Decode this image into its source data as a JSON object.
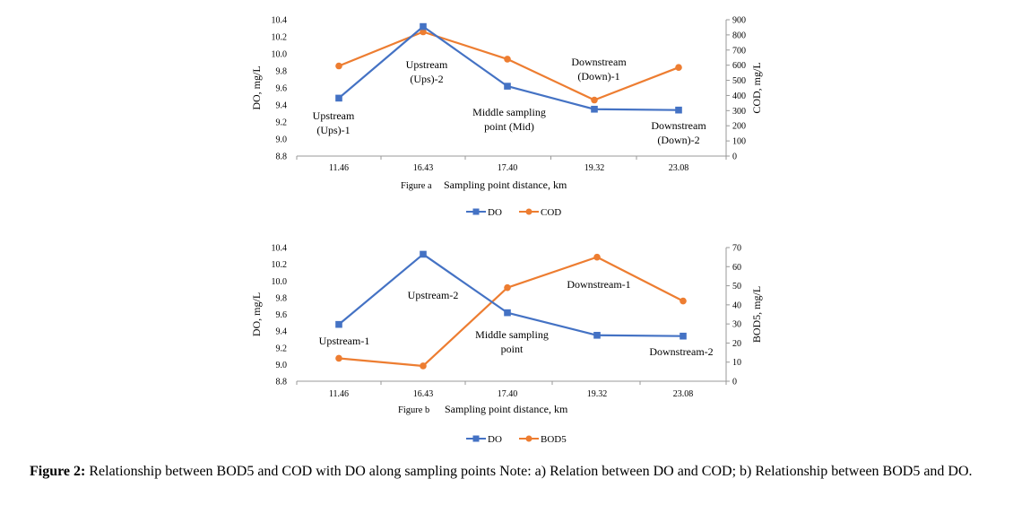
{
  "chart_data": [
    {
      "type": "line",
      "figure_tag": "Figure a",
      "xlabel": "Sampling point distance, km",
      "categories": [
        "11.46",
        "16.43",
        "17.40",
        "19.32",
        "23.08"
      ],
      "ylabel_left": "DO, mg/L",
      "ylabel_right": "COD, mg/L",
      "ylim_left": [
        8.8,
        10.4
      ],
      "yticks_left": [
        "10.4",
        "10.2",
        "10.0",
        "9.8",
        "9.6",
        "9.4",
        "9.2",
        "9.0",
        "8.8"
      ],
      "ylim_right": [
        0,
        900
      ],
      "yticks_right": [
        "900",
        "800",
        "700",
        "600",
        "500",
        "400",
        "300",
        "200",
        "100",
        "0"
      ],
      "series": [
        {
          "name": "DO",
          "axis": "left",
          "color": "#4472C4",
          "marker": "square",
          "values": [
            9.48,
            10.32,
            9.62,
            9.35,
            9.34
          ]
        },
        {
          "name": "COD",
          "axis": "right",
          "color": "#ED7D31",
          "marker": "circle",
          "values": [
            595,
            820,
            640,
            370,
            585
          ]
        }
      ],
      "annotations": [
        {
          "lines": [
            "Upstream",
            "(Ups)-1"
          ]
        },
        {
          "lines": [
            "Upstream",
            "(Ups)-2"
          ]
        },
        {
          "lines": [
            "Middle sampling",
            "point (Mid)"
          ]
        },
        {
          "lines": [
            "Downstream",
            "(Down)-1"
          ]
        },
        {
          "lines": [
            "Downstream",
            "(Down)-2"
          ]
        }
      ],
      "legend": "bottom"
    },
    {
      "type": "line",
      "figure_tag": "Figure b",
      "xlabel": "Sampling point distance, km",
      "categories": [
        "11.46",
        "16.43",
        "17.40",
        "19.32",
        "23.08"
      ],
      "ylabel_left": "DO, mg/L",
      "ylabel_right": "BOD5, mg/L",
      "ylim_left": [
        8.8,
        10.4
      ],
      "yticks_left": [
        "10.4",
        "10.2",
        "10.0",
        "9.8",
        "9.6",
        "9.4",
        "9.2",
        "9.0",
        "8.8"
      ],
      "ylim_right": [
        0,
        70
      ],
      "yticks_right": [
        "70",
        "60",
        "50",
        "40",
        "30",
        "20",
        "10",
        "0"
      ],
      "series": [
        {
          "name": "DO",
          "axis": "left",
          "color": "#4472C4",
          "marker": "square",
          "values": [
            9.48,
            10.32,
            9.62,
            9.35,
            9.34
          ]
        },
        {
          "name": "BOD5",
          "axis": "right",
          "color": "#ED7D31",
          "marker": "circle",
          "values": [
            12,
            8,
            49,
            65,
            42
          ]
        }
      ],
      "annotations": [
        {
          "lines": [
            "Upstream-1"
          ]
        },
        {
          "lines": [
            "Upstream-2"
          ]
        },
        {
          "lines": [
            "Middle sampling",
            "point"
          ]
        },
        {
          "lines": [
            "Downstream-1"
          ]
        },
        {
          "lines": [
            "Downstream-2"
          ]
        }
      ],
      "legend": "bottom"
    }
  ],
  "caption": {
    "label": "Figure 2:",
    "text": " Relationship between BOD5 and COD with DO along sampling points Note: a) Relation between DO and COD; b) Relationship between BOD5 and DO."
  }
}
